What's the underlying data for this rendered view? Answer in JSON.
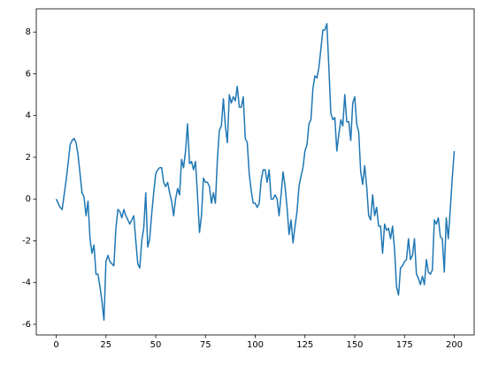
{
  "chart_data": {
    "type": "line",
    "x": [
      0,
      1,
      2,
      3,
      4,
      5,
      6,
      7,
      8,
      9,
      10,
      11,
      12,
      13,
      14,
      15,
      16,
      17,
      18,
      19,
      20,
      21,
      22,
      23,
      24,
      25,
      26,
      27,
      28,
      29,
      30,
      31,
      32,
      33,
      34,
      35,
      36,
      37,
      38,
      39,
      40,
      41,
      42,
      43,
      44,
      45,
      46,
      47,
      48,
      49,
      50,
      51,
      52,
      53,
      54,
      55,
      56,
      57,
      58,
      59,
      60,
      61,
      62,
      63,
      64,
      65,
      66,
      67,
      68,
      69,
      70,
      71,
      72,
      73,
      74,
      75,
      76,
      77,
      78,
      79,
      80,
      81,
      82,
      83,
      84,
      85,
      86,
      87,
      88,
      89,
      90,
      91,
      92,
      93,
      94,
      95,
      96,
      97,
      98,
      99,
      100,
      101,
      102,
      103,
      104,
      105,
      106,
      107,
      108,
      109,
      110,
      111,
      112,
      113,
      114,
      115,
      116,
      117,
      118,
      119,
      120,
      121,
      122,
      123,
      124,
      125,
      126,
      127,
      128,
      129,
      130,
      131,
      132,
      133,
      134,
      135,
      136,
      137,
      138,
      139,
      140,
      141,
      142,
      143,
      144,
      145,
      146,
      147,
      148,
      149,
      150,
      151,
      152,
      153,
      154,
      155,
      156,
      157,
      158,
      159,
      160,
      161,
      162,
      163,
      164,
      165,
      166,
      167,
      168,
      169,
      170,
      171,
      172,
      173,
      174,
      175,
      176,
      177,
      178,
      179,
      180,
      181,
      182,
      183,
      184,
      185,
      186,
      187,
      188,
      189,
      190,
      191,
      192,
      193,
      194,
      195,
      196,
      197,
      198,
      199,
      200
    ],
    "series": [
      {
        "color": "#1f77b4",
        "values": [
          0,
          -0.2,
          -0.4,
          -0.5,
          0.2,
          0.9,
          1.7,
          2.6,
          2.8,
          2.9,
          2.7,
          2.1,
          1.2,
          0.3,
          0.1,
          -0.8,
          -0.1,
          -1.9,
          -2.6,
          -2.2,
          -3.6,
          -3.6,
          -4.2,
          -4.9,
          -5.8,
          -3.0,
          -2.7,
          -3.0,
          -3.1,
          -3.2,
          -1.4,
          -0.5,
          -0.6,
          -0.9,
          -0.5,
          -0.8,
          -1.0,
          -1.2,
          -1.0,
          -0.8,
          -2.0,
          -3.1,
          -3.3,
          -2.0,
          -1.4,
          0.3,
          -2.3,
          -1.9,
          -0.7,
          0.3,
          1.2,
          1.4,
          1.5,
          1.5,
          0.8,
          0.6,
          0.8,
          0.3,
          -0.1,
          -0.8,
          0.0,
          0.5,
          0.2,
          1.9,
          1.5,
          2.3,
          3.6,
          1.7,
          1.8,
          1.4,
          1.8,
          0.2,
          -1.6,
          -0.8,
          1.0,
          0.8,
          0.8,
          0.6,
          -0.2,
          0.3,
          -0.2,
          1.9,
          3.3,
          3.5,
          4.8,
          3.5,
          2.7,
          5.0,
          4.6,
          4.9,
          4.7,
          5.4,
          4.4,
          4.4,
          4.9,
          2.9,
          2.7,
          1.2,
          0.4,
          -0.2,
          -0.2,
          -0.4,
          -0.2,
          0.9,
          1.4,
          1.4,
          0.8,
          1.4,
          0.0,
          0.0,
          0.2,
          0.0,
          -0.8,
          0.2,
          1.3,
          0.6,
          -0.4,
          -1.7,
          -1.0,
          -2.1,
          -1.3,
          -0.6,
          0.6,
          1.1,
          1.5,
          2.3,
          2.6,
          3.6,
          3.8,
          5.3,
          5.9,
          5.8,
          6.3,
          7.2,
          8.1,
          8.1,
          8.4,
          6.3,
          4.1,
          3.8,
          3.9,
          2.3,
          3.1,
          3.8,
          3.5,
          5.0,
          3.7,
          3.7,
          2.8,
          4.6,
          4.9,
          3.6,
          3.2,
          1.3,
          0.7,
          1.6,
          0.6,
          -0.8,
          -1.0,
          0.2,
          -0.8,
          -0.4,
          -1.3,
          -1.3,
          -2.6,
          -1.2,
          -1.5,
          -1.4,
          -1.9,
          -1.3,
          -2.4,
          -4.2,
          -4.6,
          -3.3,
          -3.2,
          -3.0,
          -2.9,
          -1.9,
          -2.9,
          -2.7,
          -1.9,
          -3.6,
          -3.8,
          -4.1,
          -3.7,
          -4.1,
          -2.9,
          -3.5,
          -3.6,
          -3.4,
          -1.0,
          -1.2,
          -0.9,
          -1.8,
          -1.9,
          -3.5,
          -0.9,
          -1.9,
          -0.5,
          1.0,
          2.3
        ]
      }
    ],
    "xlim": [
      -10,
      210
    ],
    "ylim": [
      -6.51,
      9.11
    ],
    "xticks": [
      0,
      25,
      50,
      75,
      100,
      125,
      150,
      175,
      200
    ],
    "yticks": [
      -6,
      -4,
      -2,
      0,
      2,
      4,
      6,
      8
    ],
    "grid": false
  }
}
